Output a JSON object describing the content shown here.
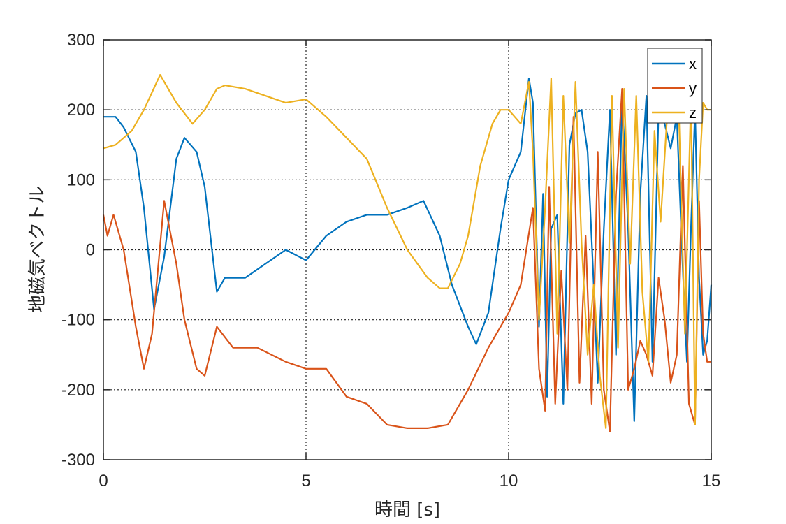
{
  "chart_data": {
    "type": "line",
    "xlabel": "時間 [s]",
    "ylabel": "地磁気ベクトル",
    "xlim": [
      0,
      15
    ],
    "ylim": [
      -300,
      300
    ],
    "xticks": [
      0,
      5,
      10,
      15
    ],
    "yticks": [
      -300,
      -200,
      -100,
      0,
      100,
      200,
      300
    ],
    "xtick_labels": [
      "0",
      "5",
      "10",
      "15"
    ],
    "ytick_labels": [
      "-300",
      "-200",
      "-100",
      "0",
      "100",
      "200",
      "300"
    ],
    "grid": true,
    "legend_position": "top-right",
    "series": [
      {
        "name": "x",
        "color": "#0072BD",
        "x": [
          0,
          0.3,
          0.5,
          0.8,
          1.0,
          1.25,
          1.5,
          1.8,
          2.0,
          2.3,
          2.5,
          2.8,
          3.0,
          3.5,
          4.0,
          4.5,
          5.0,
          5.5,
          6.0,
          6.5,
          7.0,
          7.5,
          7.9,
          8.3,
          8.6,
          9.0,
          9.2,
          9.5,
          9.8,
          10.0,
          10.3,
          10.5,
          10.6,
          10.75,
          10.85,
          10.95,
          11.05,
          11.2,
          11.35,
          11.5,
          11.65,
          11.8,
          11.95,
          12.1,
          12.2,
          12.35,
          12.5,
          12.65,
          12.8,
          12.95,
          13.1,
          13.25,
          13.4,
          13.55,
          13.7,
          13.85,
          14.0,
          14.15,
          14.3,
          14.4,
          14.5,
          14.6,
          14.7,
          14.8,
          14.9,
          15.0
        ],
        "values": [
          190,
          190,
          175,
          140,
          60,
          -85,
          -10,
          130,
          160,
          140,
          90,
          -60,
          -40,
          -40,
          -20,
          0,
          -15,
          20,
          40,
          50,
          50,
          60,
          70,
          20,
          -50,
          -110,
          -135,
          -90,
          30,
          100,
          140,
          245,
          210,
          -110,
          80,
          -210,
          30,
          50,
          -220,
          150,
          195,
          200,
          140,
          -50,
          -190,
          30,
          200,
          -150,
          220,
          30,
          -245,
          80,
          220,
          -160,
          200,
          180,
          145,
          190,
          -30,
          -160,
          30,
          200,
          -40,
          -150,
          -130,
          -50
        ]
      },
      {
        "name": "y",
        "color": "#D95319",
        "x": [
          0,
          0.1,
          0.25,
          0.5,
          0.8,
          1.0,
          1.2,
          1.5,
          1.8,
          2.0,
          2.3,
          2.5,
          2.8,
          3.2,
          3.8,
          4.5,
          5.0,
          5.5,
          6.0,
          6.5,
          7.0,
          7.5,
          8.0,
          8.5,
          9.0,
          9.5,
          10.0,
          10.3,
          10.6,
          10.75,
          10.9,
          11.0,
          11.15,
          11.3,
          11.45,
          11.6,
          11.75,
          11.9,
          12.05,
          12.2,
          12.35,
          12.5,
          12.65,
          12.8,
          12.95,
          13.1,
          13.25,
          13.4,
          13.55,
          13.7,
          13.85,
          14.0,
          14.15,
          14.3,
          14.45,
          14.6,
          14.7,
          14.8,
          14.9,
          15.0
        ],
        "values": [
          50,
          20,
          50,
          0,
          -110,
          -170,
          -120,
          70,
          -20,
          -100,
          -170,
          -180,
          -110,
          -140,
          -140,
          -160,
          -170,
          -170,
          -210,
          -220,
          -250,
          -255,
          -255,
          -250,
          -200,
          -140,
          -90,
          -50,
          60,
          -170,
          -230,
          90,
          -220,
          -30,
          -200,
          190,
          -190,
          20,
          -220,
          140,
          -200,
          -260,
          80,
          230,
          -200,
          -170,
          -130,
          -150,
          -180,
          -40,
          -100,
          -190,
          -150,
          120,
          -220,
          -250,
          70,
          -120,
          -160,
          -160
        ]
      },
      {
        "name": "z",
        "color": "#EDB120",
        "x": [
          0,
          0.3,
          0.7,
          1.0,
          1.4,
          1.8,
          2.2,
          2.5,
          2.8,
          3.0,
          3.5,
          4.0,
          4.5,
          5.0,
          5.5,
          6.0,
          6.5,
          7.0,
          7.5,
          8.0,
          8.3,
          8.5,
          8.8,
          9.0,
          9.3,
          9.6,
          9.8,
          10.0,
          10.3,
          10.5,
          10.6,
          10.75,
          10.9,
          11.05,
          11.2,
          11.35,
          11.5,
          11.65,
          11.8,
          11.95,
          12.1,
          12.25,
          12.4,
          12.55,
          12.7,
          12.85,
          13.0,
          13.15,
          13.3,
          13.45,
          13.6,
          13.75,
          13.9,
          14.05,
          14.2,
          14.35,
          14.5,
          14.6,
          14.7,
          14.8,
          14.9,
          15.0
        ],
        "values": [
          145,
          150,
          170,
          200,
          250,
          210,
          180,
          200,
          230,
          235,
          230,
          220,
          210,
          215,
          190,
          160,
          130,
          60,
          0,
          -40,
          -55,
          -55,
          -20,
          20,
          120,
          180,
          200,
          200,
          180,
          240,
          140,
          -100,
          60,
          245,
          -120,
          220,
          10,
          240,
          10,
          -150,
          -50,
          -180,
          -255,
          220,
          -140,
          230,
          -20,
          220,
          -60,
          -160,
          170,
          40,
          180,
          220,
          200,
          -120,
          220,
          -250,
          100,
          210,
          200,
          200
        ]
      }
    ]
  }
}
